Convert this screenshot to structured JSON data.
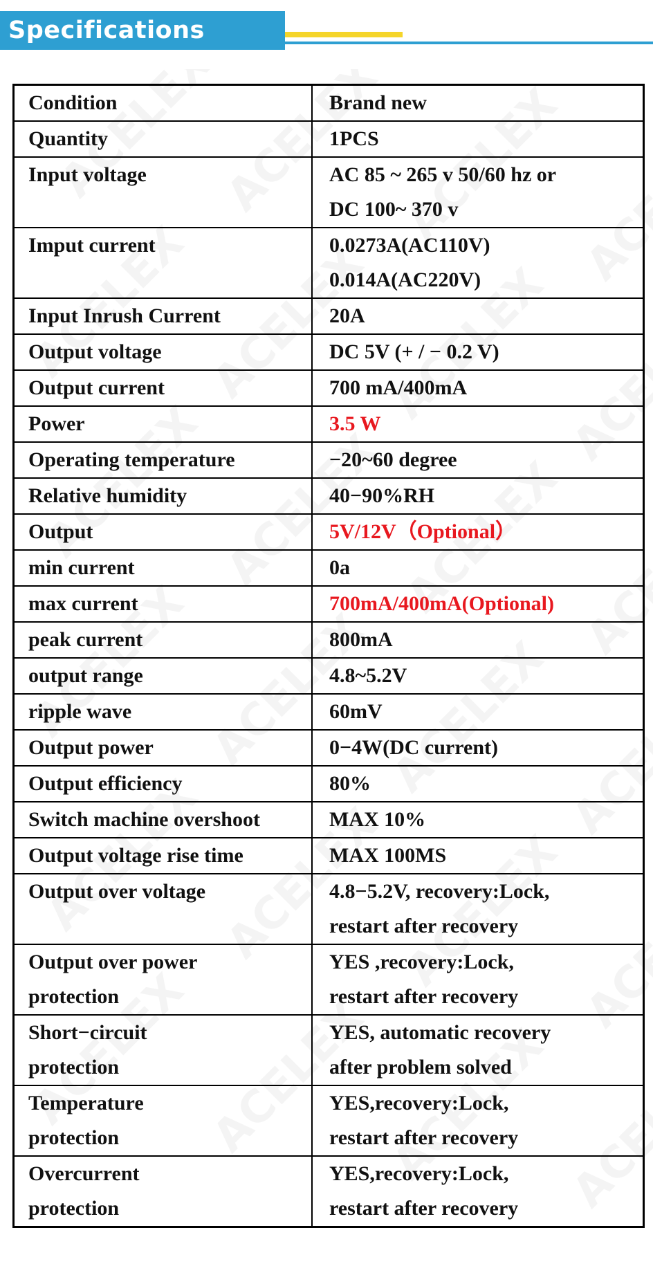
{
  "header": {
    "title": "Specifications"
  },
  "watermark": "ACELEX",
  "colors": {
    "accent_blue": "#2e9fd2",
    "accent_yellow": "#f5d52a",
    "highlight_red": "#e8181f"
  },
  "specs": [
    {
      "label": [
        "Condition"
      ],
      "value": [
        "Brand new"
      ]
    },
    {
      "label": [
        "Quantity"
      ],
      "value": [
        "1PCS"
      ]
    },
    {
      "label": [
        "Input voltage"
      ],
      "value": [
        "AC 85 ~ 265 v 50/60 hz or",
        "DC 100~ 370 v"
      ]
    },
    {
      "label": [
        "Imput current"
      ],
      "value": [
        "0.0273A(AC110V)",
        "0.014A(AC220V)"
      ]
    },
    {
      "label": [
        "Input Inrush Current"
      ],
      "value": [
        "20A"
      ]
    },
    {
      "label": [
        "Output voltage"
      ],
      "value": [
        "DC 5V (+ / − 0.2 V)"
      ]
    },
    {
      "label": [
        "Output current"
      ],
      "value": [
        "700 mA/400mA"
      ]
    },
    {
      "label": [
        "Power"
      ],
      "value": [
        "3.5 W"
      ],
      "highlight": true
    },
    {
      "label": [
        "Operating temperature"
      ],
      "value": [
        "−20~60 degree"
      ]
    },
    {
      "label": [
        "Relative humidity"
      ],
      "value": [
        "40−90%RH"
      ]
    },
    {
      "label": [
        "Output"
      ],
      "value": [
        "5V/12V（Optional）"
      ],
      "highlight": true
    },
    {
      "label": [
        "min current"
      ],
      "value": [
        "0a"
      ]
    },
    {
      "label": [
        "max current"
      ],
      "value": [
        "700mA/400mA(Optional)"
      ],
      "highlight": true
    },
    {
      "label": [
        "peak current"
      ],
      "value": [
        "800mA"
      ]
    },
    {
      "label": [
        "output range"
      ],
      "value": [
        "4.8~5.2V"
      ]
    },
    {
      "label": [
        "ripple wave"
      ],
      "value": [
        "60mV"
      ]
    },
    {
      "label": [
        "Output power"
      ],
      "value": [
        "0−4W(DC current)"
      ]
    },
    {
      "label": [
        "Output efficiency"
      ],
      "value": [
        "80%"
      ]
    },
    {
      "label": [
        "Switch machine overshoot"
      ],
      "value": [
        "MAX 10%"
      ]
    },
    {
      "label": [
        "Output voltage rise time"
      ],
      "value": [
        "MAX 100MS"
      ]
    },
    {
      "label": [
        "Output over voltage"
      ],
      "value": [
        "4.8−5.2V, recovery:Lock,",
        "restart after recovery"
      ]
    },
    {
      "label": [
        "Output over power",
        "protection"
      ],
      "value": [
        "YES ,recovery:Lock,",
        "restart after recovery"
      ]
    },
    {
      "label": [
        "Short−circuit",
        "protection"
      ],
      "value": [
        "YES, automatic recovery",
        "after problem solved"
      ]
    },
    {
      "label": [
        "Temperature",
        "protection"
      ],
      "value": [
        "YES,recovery:Lock,",
        "restart after recovery"
      ]
    },
    {
      "label": [
        "Overcurrent",
        "protection"
      ],
      "value": [
        "YES,recovery:Lock,",
        "restart after recovery"
      ]
    }
  ]
}
